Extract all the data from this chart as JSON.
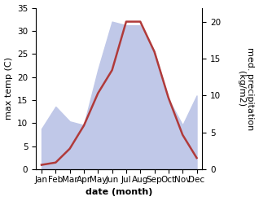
{
  "months": [
    "Jan",
    "Feb",
    "Mar",
    "Apr",
    "May",
    "Jun",
    "Jul",
    "Aug",
    "Sep",
    "Oct",
    "Nov",
    "Dec"
  ],
  "x": [
    0,
    1,
    2,
    3,
    4,
    5,
    6,
    7,
    8,
    9,
    10,
    11
  ],
  "temperature": [
    1.0,
    1.5,
    4.5,
    9.5,
    16.5,
    21.5,
    32.0,
    32.0,
    25.5,
    15.5,
    7.5,
    2.5
  ],
  "precipitation": [
    5.5,
    8.5,
    6.5,
    6.0,
    13.5,
    20.0,
    19.5,
    19.5,
    16.0,
    9.5,
    6.0,
    10.0
  ],
  "temp_color": "#b03a3a",
  "precip_fill_color": "#c0c8e8",
  "temp_ylim": [
    0,
    35
  ],
  "precip_ylim": [
    0,
    21.875
  ],
  "temp_yticks": [
    0,
    5,
    10,
    15,
    20,
    25,
    30,
    35
  ],
  "precip_yticks": [
    0,
    5,
    10,
    15,
    20
  ],
  "xlabel": "date (month)",
  "ylabel_left": "max temp (C)",
  "ylabel_right": "med. precipitation\n(kg/m2)",
  "label_fontsize": 8,
  "tick_fontsize": 7.5,
  "linewidth": 1.8
}
